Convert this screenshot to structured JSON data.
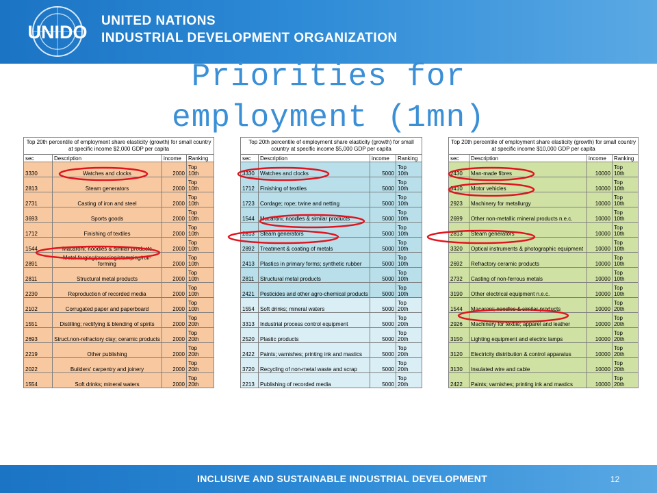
{
  "header": {
    "org_line1": "UNITED NATIONS",
    "org_line2": "INDUSTRIAL DEVELOPMENT ORGANIZATION",
    "logo_text": "UNIDO"
  },
  "title": {
    "line1": "Priorities for",
    "line2": "employment (1mn)"
  },
  "tables": [
    {
      "caption": "Top 20th percentile of employment share elasticity (growth) for small country at specific income $2,000 GDP per capita",
      "columns": [
        "sec",
        "Description",
        "income",
        "Ranking"
      ],
      "rows": [
        {
          "sec": "3330",
          "desc": "Watches and clocks",
          "income": "2000",
          "rank1": "Top",
          "rank2": "10th"
        },
        {
          "sec": "2813",
          "desc": "Steam generators",
          "income": "2000",
          "rank1": "Top",
          "rank2": "10th"
        },
        {
          "sec": "2731",
          "desc": "Casting of iron and steel",
          "income": "2000",
          "rank1": "Top",
          "rank2": "10th"
        },
        {
          "sec": "3693",
          "desc": "Sports goods",
          "income": "2000",
          "rank1": "Top",
          "rank2": "10th"
        },
        {
          "sec": "1712",
          "desc": "Finishing of textiles",
          "income": "2000",
          "rank1": "Top",
          "rank2": "10th"
        },
        {
          "sec": "1544",
          "desc": "Macaroni; noodles & similar products",
          "income": "2000",
          "rank1": "Top",
          "rank2": "10th"
        },
        {
          "sec": "2891",
          "desc": "Metal forging/pressing/stamping/roll-forming",
          "income": "2000",
          "rank1": "Top",
          "rank2": "10th"
        },
        {
          "sec": "2811",
          "desc": "Structural metal products",
          "income": "2000",
          "rank1": "Top",
          "rank2": "10th"
        },
        {
          "sec": "2230",
          "desc": "Reproduction of recorded media",
          "income": "2000",
          "rank1": "Top",
          "rank2": "10th"
        },
        {
          "sec": "2102",
          "desc": "Corrugated paper and paperboard",
          "income": "2000",
          "rank1": "Top",
          "rank2": "10th"
        },
        {
          "sec": "1551",
          "desc": "Distilling; rectifying & blending of spirits",
          "income": "2000",
          "rank1": "Top",
          "rank2": "20th"
        },
        {
          "sec": "2693",
          "desc": "Struct.non-refractory clay; ceramic products",
          "income": "2000",
          "rank1": "Top",
          "rank2": "20th"
        },
        {
          "sec": "2219",
          "desc": "Other publishing",
          "income": "2000",
          "rank1": "Top",
          "rank2": "20th"
        },
        {
          "sec": "2022",
          "desc": "Builders' carpentry and joinery",
          "income": "2000",
          "rank1": "Top",
          "rank2": "20th"
        },
        {
          "sec": "1554",
          "desc": "Soft drinks; mineral waters",
          "income": "2000",
          "rank1": "Top",
          "rank2": "20th"
        }
      ]
    },
    {
      "caption": "Top 20th percentile of employment share elasticity (growth) for small country at specific income $5,000 GDP per capita",
      "columns": [
        "sec",
        "Description",
        "income",
        "Ranking"
      ],
      "rows": [
        {
          "sec": "3330",
          "desc": "Watches and clocks",
          "income": "5000",
          "rank1": "Top",
          "rank2": "10th"
        },
        {
          "sec": "1712",
          "desc": "Finishing of textiles",
          "income": "5000",
          "rank1": "Top",
          "rank2": "10th"
        },
        {
          "sec": "1723",
          "desc": "Cordage; rope; twine and netting",
          "income": "5000",
          "rank1": "Top",
          "rank2": "10th"
        },
        {
          "sec": "1544",
          "desc": "Macaroni; noodles & similar products",
          "income": "5000",
          "rank1": "Top",
          "rank2": "10th"
        },
        {
          "sec": "2813",
          "desc": "Steam generators",
          "income": "5000",
          "rank1": "Top",
          "rank2": "10th"
        },
        {
          "sec": "2892",
          "desc": "Treatment & coating of metals",
          "income": "5000",
          "rank1": "Top",
          "rank2": "10th"
        },
        {
          "sec": "2413",
          "desc": "Plastics in primary forms; synthetic rubber",
          "income": "5000",
          "rank1": "Top",
          "rank2": "10th"
        },
        {
          "sec": "2811",
          "desc": "Structural metal products",
          "income": "5000",
          "rank1": "Top",
          "rank2": "10th"
        },
        {
          "sec": "2421",
          "desc": "Pesticides and other agro-chemical products",
          "income": "5000",
          "rank1": "Top",
          "rank2": "10th"
        },
        {
          "sec": "1554",
          "desc": "Soft drinks; mineral waters",
          "income": "5000",
          "rank1": "Top",
          "rank2": "20th"
        },
        {
          "sec": "3313",
          "desc": "Industrial process control equipment",
          "income": "5000",
          "rank1": "Top",
          "rank2": "20th"
        },
        {
          "sec": "2520",
          "desc": "Plastic products",
          "income": "5000",
          "rank1": "Top",
          "rank2": "20th"
        },
        {
          "sec": "2422",
          "desc": "Paints; varnishes; printing ink and mastics",
          "income": "5000",
          "rank1": "Top",
          "rank2": "20th"
        },
        {
          "sec": "3720",
          "desc": "Recycling of non-metal waste and scrap",
          "income": "5000",
          "rank1": "Top",
          "rank2": "20th"
        },
        {
          "sec": "2213",
          "desc": "Publishing of recorded media",
          "income": "5000",
          "rank1": "Top",
          "rank2": "20th"
        }
      ]
    },
    {
      "caption": "Top 20th percentile of employment share elasticity (growth) for small country at specific income $10,000 GDP per capita",
      "columns": [
        "sec",
        "Description",
        "income",
        "Ranking"
      ],
      "rows": [
        {
          "sec": "2430",
          "desc": "Man-made fibres",
          "income": "10000",
          "rank1": "Top",
          "rank2": "10th"
        },
        {
          "sec": "3410",
          "desc": "Motor vehicles",
          "income": "10000",
          "rank1": "Top",
          "rank2": "10th"
        },
        {
          "sec": "2923",
          "desc": "Machinery for metallurgy",
          "income": "10000",
          "rank1": "Top",
          "rank2": "10th"
        },
        {
          "sec": "2699",
          "desc": "Other non-metallic mineral products n.e.c.",
          "income": "10000",
          "rank1": "Top",
          "rank2": "10th"
        },
        {
          "sec": "2813",
          "desc": "Steam generators",
          "income": "10000",
          "rank1": "Top",
          "rank2": "10th"
        },
        {
          "sec": "3320",
          "desc": "Optical instruments & photographic equipment",
          "income": "10000",
          "rank1": "Top",
          "rank2": "10th"
        },
        {
          "sec": "2692",
          "desc": "Refractory ceramic products",
          "income": "10000",
          "rank1": "Top",
          "rank2": "10th"
        },
        {
          "sec": "2732",
          "desc": "Casting of non-ferrous metals",
          "income": "10000",
          "rank1": "Top",
          "rank2": "10th"
        },
        {
          "sec": "3190",
          "desc": "Other electrical equipment n.e.c.",
          "income": "10000",
          "rank1": "Top",
          "rank2": "10th"
        },
        {
          "sec": "1544",
          "desc": "Macaroni; noodles & similar products",
          "income": "10000",
          "rank1": "Top",
          "rank2": "20th"
        },
        {
          "sec": "2926",
          "desc": "Machinery for textile; apparel and leather",
          "income": "10000",
          "rank1": "Top",
          "rank2": "20th"
        },
        {
          "sec": "3150",
          "desc": "Lighting equipment and electric lamps",
          "income": "10000",
          "rank1": "Top",
          "rank2": "20th"
        },
        {
          "sec": "3120",
          "desc": "Electricity distribution & control apparatus",
          "income": "10000",
          "rank1": "Top",
          "rank2": "20th"
        },
        {
          "sec": "3130",
          "desc": "Insulated wire and cable",
          "income": "10000",
          "rank1": "Top",
          "rank2": "20th"
        },
        {
          "sec": "2422",
          "desc": "Paints; varnishes; printing ink and mastics",
          "income": "10000",
          "rank1": "Top",
          "rank2": "20th"
        }
      ]
    }
  ],
  "highlight_color": "#e0141e",
  "footer": {
    "text": "INCLUSIVE AND SUSTAINABLE INDUSTRIAL DEVELOPMENT",
    "page_number": "12"
  }
}
